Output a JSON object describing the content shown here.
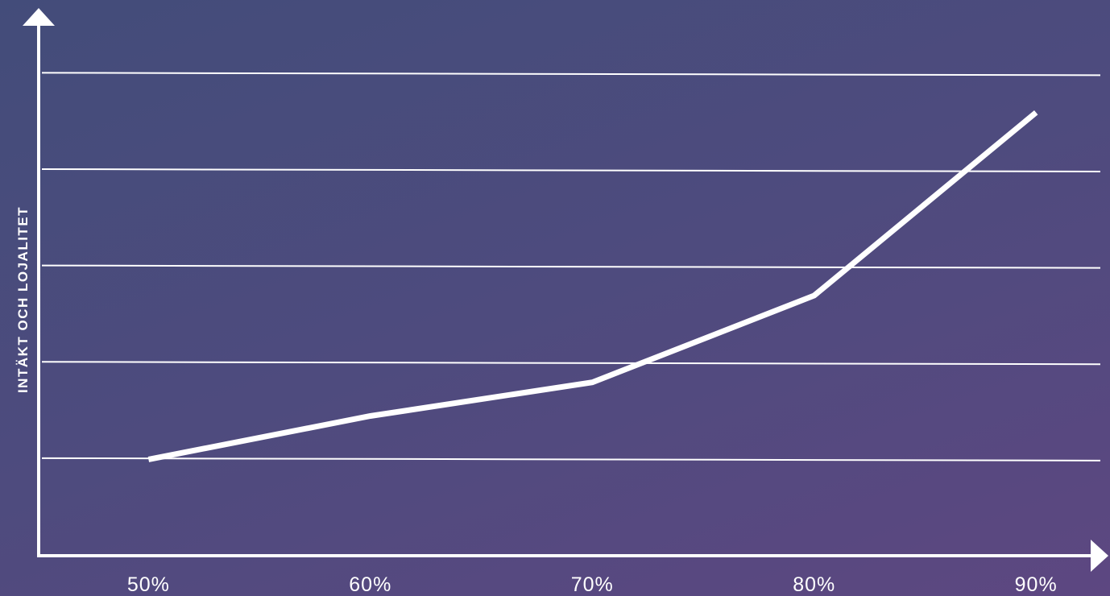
{
  "chart_data": {
    "type": "line",
    "title": "",
    "xlabel": "",
    "ylabel": "INTÄKT OCH LOJALITET",
    "x_tick_labels": [
      "50%",
      "60%",
      "70%",
      "80%",
      "90%"
    ],
    "series": [
      {
        "x": [
          50,
          60,
          70,
          80,
          90
        ],
        "values": [
          1.0,
          1.45,
          1.8,
          2.7,
          4.6
        ]
      }
    ],
    "ylim": [
      0,
      5.3
    ],
    "y_gridlines": [
      1,
      2,
      3,
      4,
      5
    ],
    "grid": true,
    "y_tick_labels_visible": false,
    "colors": {
      "background_start": "#434c7a",
      "background_end": "#5d4781",
      "line": "#ffffff",
      "axis": "#ffffff",
      "grid": "#ffffff",
      "text": "#ffffff"
    }
  }
}
